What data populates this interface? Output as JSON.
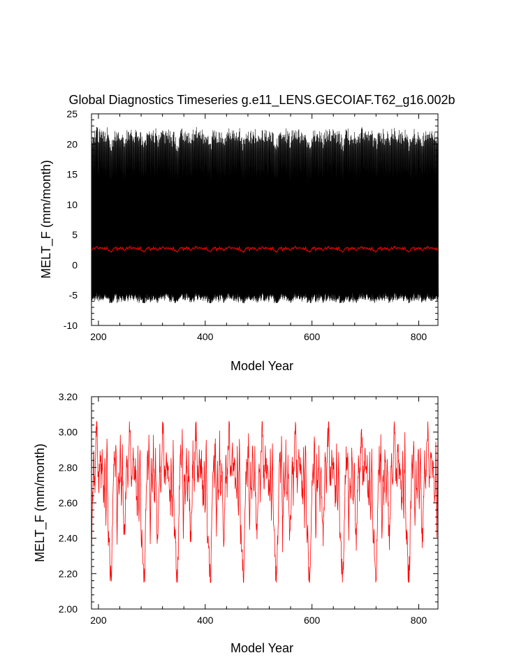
{
  "title": "Global Diagnostics Timeseries g.e11_LENS.GECOIAF.T62_g16.002b",
  "chart_data": [
    {
      "type": "line",
      "xlabel": "Model Year",
      "ylabel": "MELT_F (mm/month)",
      "xlim": [
        187,
        836
      ],
      "ylim": [
        -10,
        25
      ],
      "xticks": [
        "200",
        "400",
        "600",
        "800"
      ],
      "yticks": [
        "-10",
        "-5",
        "0",
        "5",
        "10",
        "15",
        "20",
        "25"
      ],
      "grid": false,
      "series": [
        {
          "color": "#000000",
          "description": "monthly values oscillating seasonally between about -5.5 and 22",
          "envelope": {
            "min": -6.3,
            "max": 22.8
          },
          "cycle_years": 62,
          "x_start": 187,
          "x_end": 836
        },
        {
          "color": "#ff0000",
          "description": "annual mean, nearly flat",
          "mean": 2.7,
          "min": 2.15,
          "max": 3.06,
          "cycle_years": 62,
          "x_start": 187,
          "x_end": 836
        }
      ]
    },
    {
      "type": "line",
      "xlabel": "Model Year",
      "ylabel": "MELT_F (mm/month)",
      "xlim": [
        187,
        836
      ],
      "ylim": [
        2.0,
        3.2
      ],
      "xticks": [
        "200",
        "400",
        "600",
        "800"
      ],
      "yticks": [
        "2.00",
        "2.20",
        "2.40",
        "2.60",
        "2.80",
        "3.00",
        "3.20"
      ],
      "grid": false,
      "series": [
        {
          "color": "#ff0000",
          "cycle_years": 62,
          "cycle_start": 187,
          "cycle_keypoints": [
            [
              0,
              2.4
            ],
            [
              2,
              2.6
            ],
            [
              4,
              2.88
            ],
            [
              6,
              2.66
            ],
            [
              8,
              2.92
            ],
            [
              10,
              3.06
            ],
            [
              12,
              2.78
            ],
            [
              14,
              2.72
            ],
            [
              16,
              2.9
            ],
            [
              18,
              2.76
            ],
            [
              20,
              2.83
            ],
            [
              22,
              2.68
            ],
            [
              24,
              2.58
            ],
            [
              25,
              2.88
            ],
            [
              27,
              2.48
            ],
            [
              29,
              2.96
            ],
            [
              31,
              2.42
            ],
            [
              33,
              2.4
            ],
            [
              35,
              2.22
            ],
            [
              37,
              2.15
            ],
            [
              39,
              2.42
            ],
            [
              41,
              2.72
            ],
            [
              43,
              2.86
            ],
            [
              44,
              2.76
            ],
            [
              46,
              2.96
            ],
            [
              48,
              2.4
            ],
            [
              50,
              2.8
            ],
            [
              52,
              2.62
            ],
            [
              54,
              2.93
            ],
            [
              56,
              2.6
            ],
            [
              58,
              2.85
            ],
            [
              60,
              2.55
            ],
            [
              61,
              2.42
            ]
          ],
          "x_start": 187,
          "x_end": 836
        }
      ]
    }
  ]
}
